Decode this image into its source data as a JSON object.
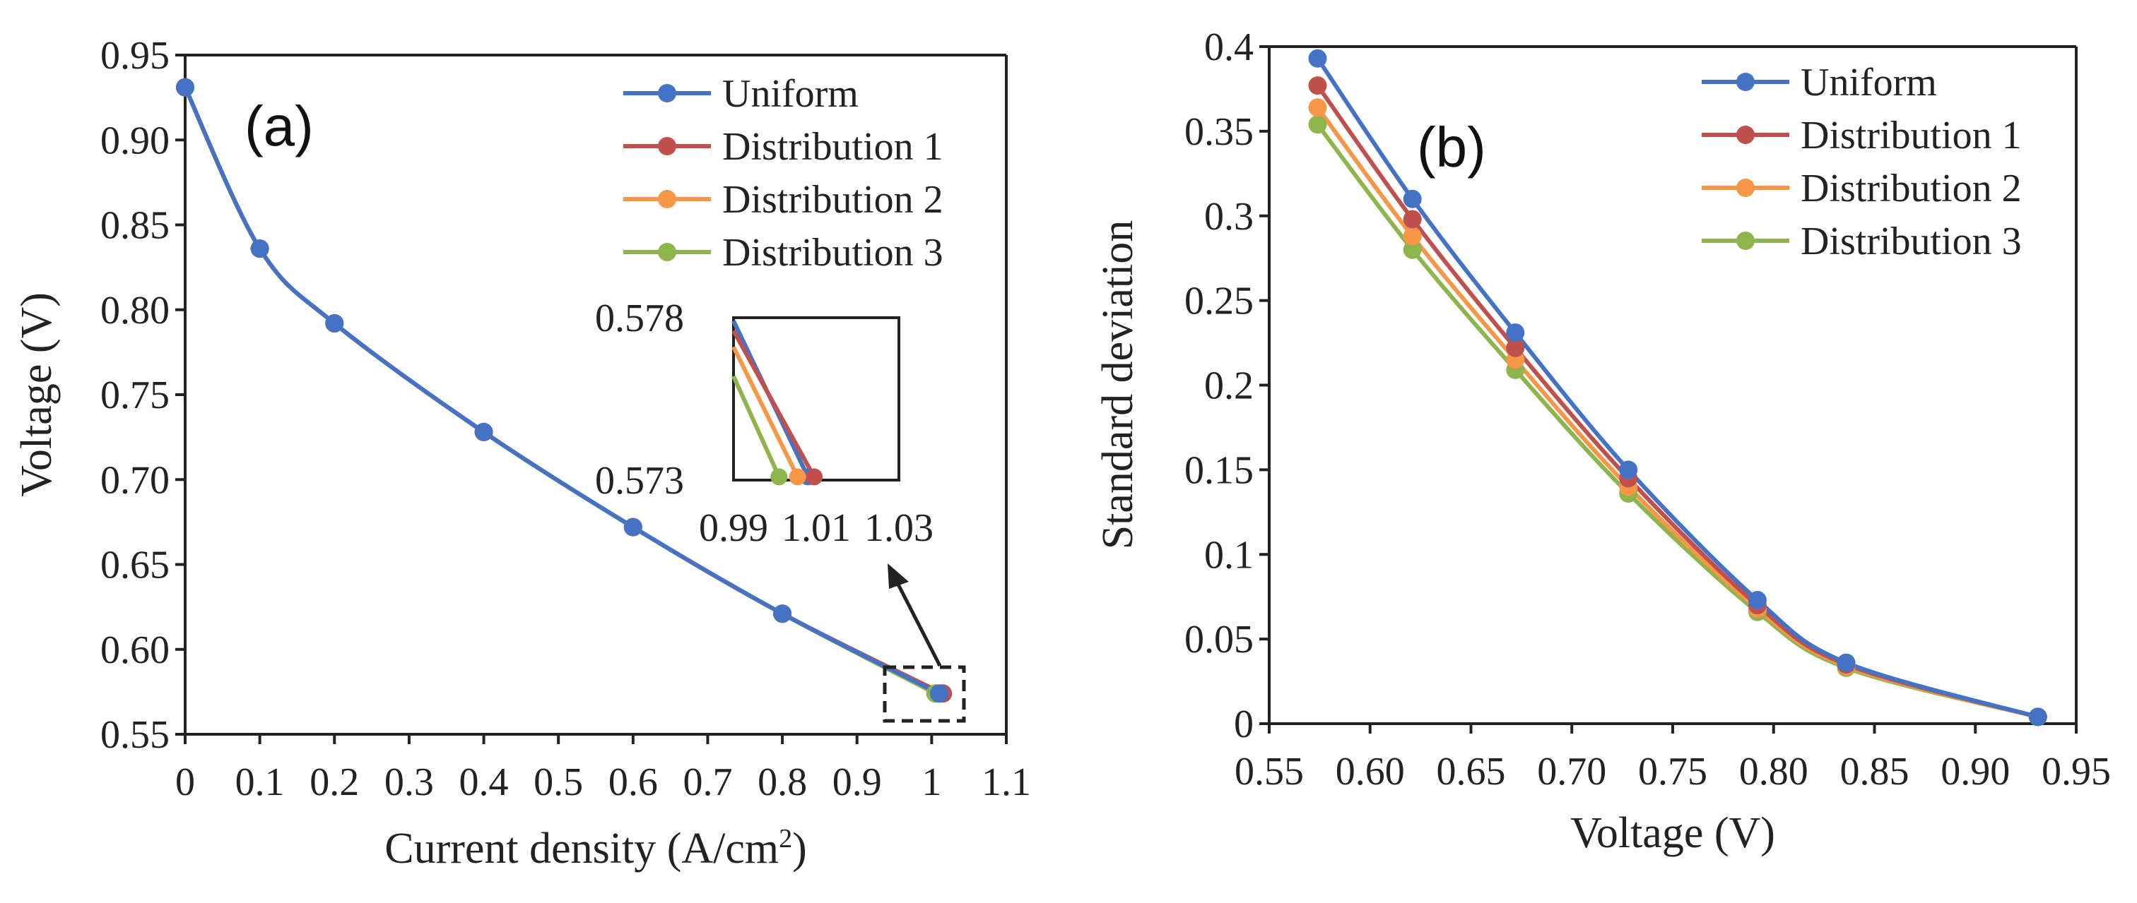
{
  "colors": {
    "uniform": "#4472C4",
    "distribution_1": "#C0504D",
    "distribution_2": "#F79646",
    "distribution_3": "#8DB54B",
    "axis": "#222222"
  },
  "chart_data": [
    {
      "panel": "(a)",
      "type": "line",
      "xlabel": "Current density  (A/cm",
      "xlabel_sup": "2",
      "xlabel_close": ")",
      "ylabel": "Voltage (V)",
      "xlim": [
        0,
        1.1
      ],
      "ylim": [
        0.55,
        0.95
      ],
      "x_ticks": [
        "0",
        "0.1",
        "0.2",
        "0.3",
        "0.4",
        "0.5",
        "0.6",
        "0.7",
        "0.8",
        "0.9",
        "1",
        "1.1"
      ],
      "y_ticks": [
        "0.55",
        "0.60",
        "0.65",
        "0.70",
        "0.75",
        "0.80",
        "0.85",
        "0.90",
        "0.95"
      ],
      "grid": false,
      "legend": "top-right",
      "series": [
        {
          "name": "Uniform",
          "color_key": "uniform",
          "x": [
            0,
            0.1,
            0.2,
            0.4,
            0.6,
            0.8,
            1.01
          ],
          "y": [
            0.931,
            0.836,
            0.792,
            0.728,
            0.672,
            0.621,
            0.574
          ]
        },
        {
          "name": "Distribution 1",
          "color_key": "distribution_1",
          "x": [
            0,
            0.1,
            0.2,
            0.4,
            0.6,
            0.8,
            1.015
          ],
          "y": [
            0.931,
            0.836,
            0.792,
            0.728,
            0.672,
            0.621,
            0.574
          ]
        },
        {
          "name": "Distribution 2",
          "color_key": "distribution_2",
          "x": [
            0,
            0.1,
            0.2,
            0.4,
            0.6,
            0.8,
            1.012
          ],
          "y": [
            0.931,
            0.836,
            0.792,
            0.728,
            0.672,
            0.621,
            0.574
          ]
        },
        {
          "name": "Distribution 3",
          "color_key": "distribution_3",
          "x": [
            0,
            0.1,
            0.2,
            0.4,
            0.6,
            0.8,
            1.005
          ],
          "y": [
            0.931,
            0.836,
            0.792,
            0.728,
            0.672,
            0.621,
            0.574
          ]
        }
      ],
      "inset": {
        "xlim": [
          0.99,
          1.03
        ],
        "ylim": [
          0.573,
          0.578
        ],
        "x_ticks": [
          "0.99",
          "1.01",
          "1.03"
        ],
        "y_ticks": [
          "0.573",
          "0.578"
        ],
        "series": [
          {
            "color_key": "uniform",
            "x": [
              0.99,
              1.008
            ],
            "y": [
              0.5779,
              0.5731
            ]
          },
          {
            "color_key": "distribution_1",
            "x": [
              0.99,
              1.0095
            ],
            "y": [
              0.5776,
              0.5731
            ]
          },
          {
            "color_key": "distribution_2",
            "x": [
              0.99,
              1.0055
            ],
            "y": [
              0.5771,
              0.5731
            ]
          },
          {
            "color_key": "distribution_3",
            "x": [
              0.99,
              1.001
            ],
            "y": [
              0.5762,
              0.5731
            ]
          }
        ]
      }
    },
    {
      "panel": "(b)",
      "type": "line",
      "xlabel": "Voltage (V)",
      "ylabel": "Standard deviation",
      "xlim": [
        0.55,
        0.95
      ],
      "ylim": [
        0,
        0.4
      ],
      "x_ticks": [
        "0.55",
        "0.60",
        "0.65",
        "0.70",
        "0.75",
        "0.80",
        "0.85",
        "0.90",
        "0.95"
      ],
      "y_ticks": [
        "0",
        "0.05",
        "0.1",
        "0.15",
        "0.2",
        "0.25",
        "0.3",
        "0.35",
        "0.4"
      ],
      "grid": false,
      "legend": "top-right",
      "series": [
        {
          "name": "Uniform",
          "color_key": "uniform",
          "x": [
            0.574,
            0.621,
            0.672,
            0.728,
            0.792,
            0.836,
            0.931
          ],
          "y": [
            0.393,
            0.31,
            0.231,
            0.15,
            0.073,
            0.036,
            0.004
          ]
        },
        {
          "name": "Distribution 1",
          "color_key": "distribution_1",
          "x": [
            0.574,
            0.621,
            0.672,
            0.728,
            0.792,
            0.836,
            0.931
          ],
          "y": [
            0.377,
            0.298,
            0.222,
            0.145,
            0.07,
            0.035,
            0.004
          ]
        },
        {
          "name": "Distribution 2",
          "color_key": "distribution_2",
          "x": [
            0.574,
            0.621,
            0.672,
            0.728,
            0.792,
            0.836,
            0.931
          ],
          "y": [
            0.364,
            0.288,
            0.215,
            0.14,
            0.068,
            0.034,
            0.004
          ]
        },
        {
          "name": "Distribution 3",
          "color_key": "distribution_3",
          "x": [
            0.574,
            0.621,
            0.672,
            0.728,
            0.792,
            0.836,
            0.931
          ],
          "y": [
            0.354,
            0.28,
            0.209,
            0.136,
            0.066,
            0.033,
            0.004
          ]
        }
      ]
    }
  ]
}
